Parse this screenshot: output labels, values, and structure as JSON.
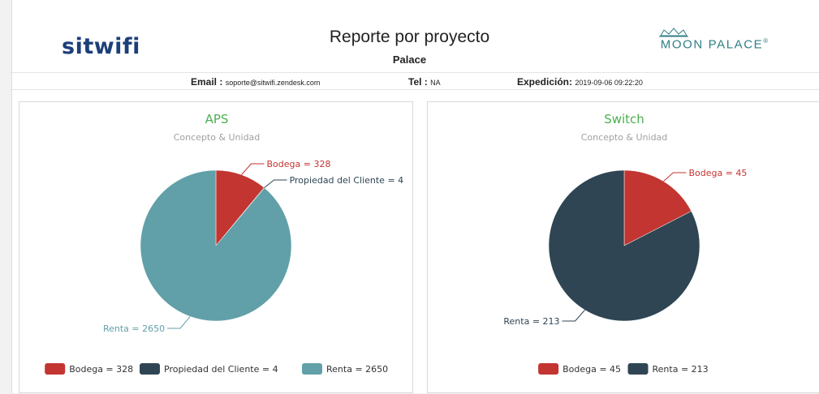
{
  "header": {
    "brand_left": "sitwifi",
    "brand_right": "MOON PALACE",
    "brand_right_mark": "®",
    "title": "Reporte por proyecto",
    "subtitle": "Palace"
  },
  "info": {
    "email_label": "Email :",
    "email_value": "soporte@sitwifi.zendesk.com",
    "tel_label": "Tel :",
    "tel_value": "NA",
    "exp_label": "Expedición:",
    "exp_value": "2019-09-06 09:22:20"
  },
  "colors": {
    "bodega": "#c23531",
    "propiedad": "#2f4554",
    "renta": "#61a0a8",
    "title": "#4caf50"
  },
  "chart_data": [
    {
      "type": "pie",
      "title": "APS",
      "subtitle": "Concepto & Unidad",
      "categories": [
        "Bodega",
        "Propiedad del Cliente",
        "Renta"
      ],
      "values": [
        328,
        4,
        2650
      ],
      "slice_labels": [
        "Bodega = 328",
        "Propiedad del Cliente = 4",
        "Renta = 2650"
      ],
      "legend": [
        "Bodega = 328",
        "Propiedad del Cliente = 4",
        "Renta = 2650"
      ],
      "legend_position": "bottom-center"
    },
    {
      "type": "pie",
      "title": "Switch",
      "subtitle": "Concepto & Unidad",
      "categories": [
        "Bodega",
        "Renta"
      ],
      "values": [
        45,
        213
      ],
      "slice_labels": [
        "Bodega = 45",
        "Renta = 213"
      ],
      "legend": [
        "Bodega = 45",
        "Renta = 213"
      ],
      "legend_position": "bottom-center"
    }
  ]
}
